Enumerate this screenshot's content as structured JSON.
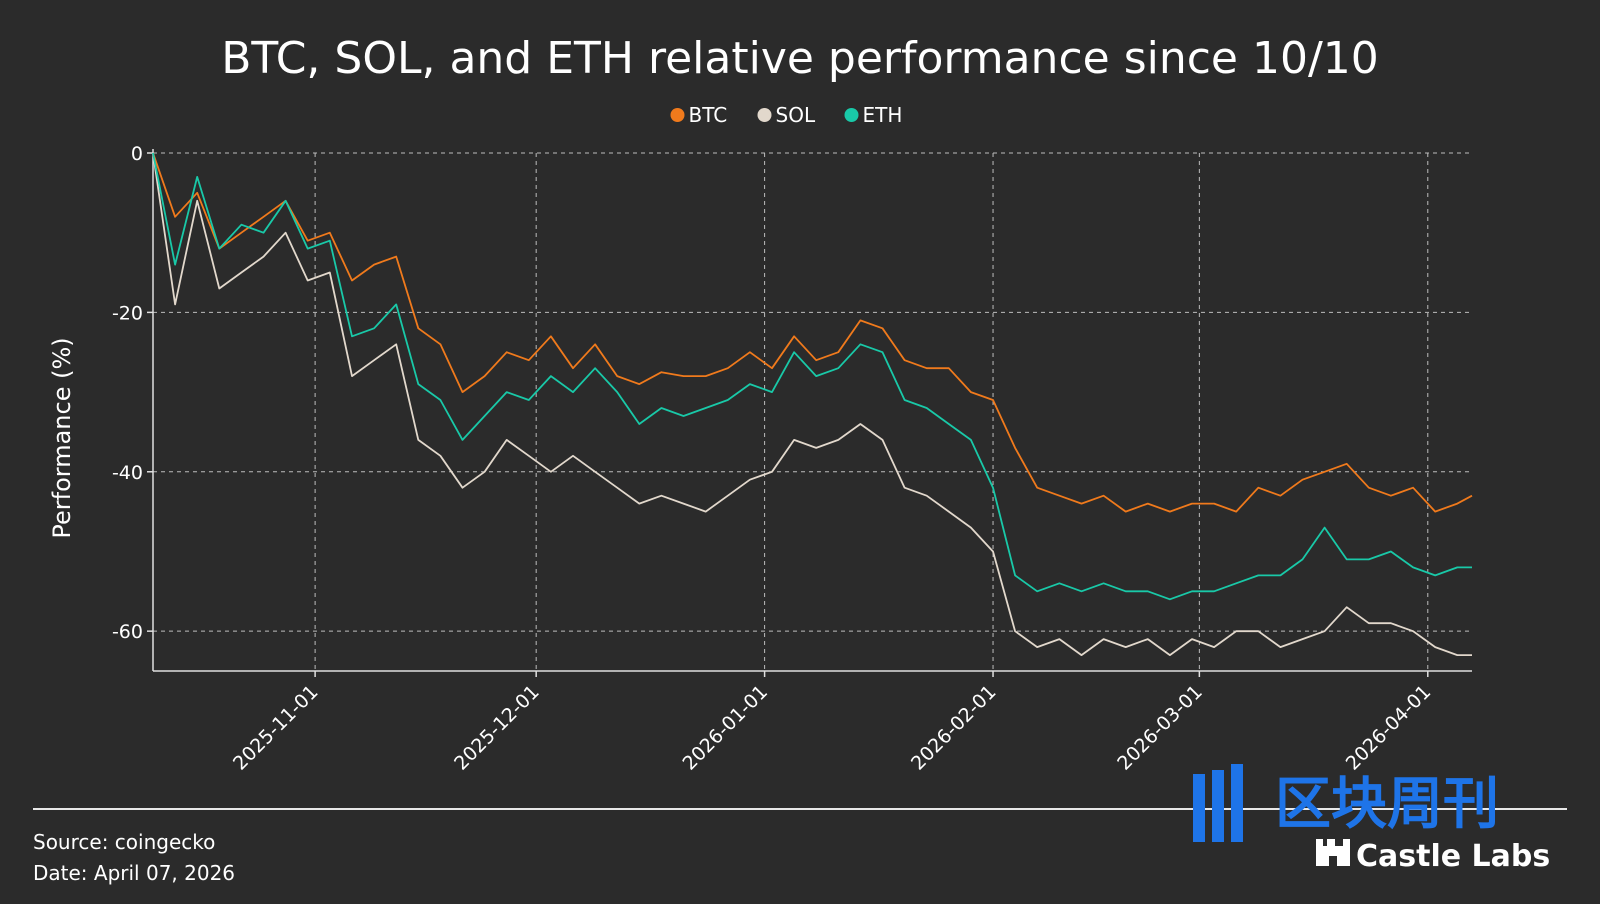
{
  "chart_data": {
    "type": "line",
    "title": "BTC, SOL, and ETH relative performance since 10/10",
    "ylabel": "Performance (%)",
    "xlabel": "",
    "x_range": [
      "2025-10-10",
      "2026-04-07"
    ],
    "ylim": [
      -65,
      0
    ],
    "grid": true,
    "legend_position": "top-center",
    "y_ticks": [
      0,
      -20,
      -40,
      -60
    ],
    "x_ticks": [
      "2025-11-01",
      "2025-12-01",
      "2026-01-01",
      "2026-02-01",
      "2026-03-01",
      "2026-04-01"
    ],
    "dates": [
      "2025-10-10",
      "2025-10-13",
      "2025-10-16",
      "2025-10-19",
      "2025-10-22",
      "2025-10-25",
      "2025-10-28",
      "2025-10-31",
      "2025-11-03",
      "2025-11-06",
      "2025-11-09",
      "2025-11-12",
      "2025-11-15",
      "2025-11-18",
      "2025-11-21",
      "2025-11-24",
      "2025-11-27",
      "2025-11-30",
      "2025-12-03",
      "2025-12-06",
      "2025-12-09",
      "2025-12-12",
      "2025-12-15",
      "2025-12-18",
      "2025-12-21",
      "2025-12-24",
      "2025-12-27",
      "2025-12-30",
      "2026-01-02",
      "2026-01-05",
      "2026-01-08",
      "2026-01-11",
      "2026-01-14",
      "2026-01-17",
      "2026-01-20",
      "2026-01-23",
      "2026-01-26",
      "2026-01-29",
      "2026-02-01",
      "2026-02-04",
      "2026-02-07",
      "2026-02-10",
      "2026-02-13",
      "2026-02-16",
      "2026-02-19",
      "2026-02-22",
      "2026-02-25",
      "2026-02-28",
      "2026-03-03",
      "2026-03-06",
      "2026-03-09",
      "2026-03-12",
      "2026-03-15",
      "2026-03-18",
      "2026-03-21",
      "2026-03-24",
      "2026-03-27",
      "2026-03-30",
      "2026-04-02",
      "2026-04-05",
      "2026-04-07"
    ],
    "series": [
      {
        "name": "BTC",
        "color": "#f07a1c",
        "values": [
          0,
          -8,
          -5,
          -12,
          -10,
          -8,
          -6,
          -11,
          -10,
          -16,
          -14,
          -13,
          -22,
          -24,
          -30,
          -28,
          -25,
          -26,
          -23,
          -27,
          -24,
          -28,
          -29,
          -27.5,
          -28,
          -28,
          -27,
          -25,
          -27,
          -23,
          -26,
          -25,
          -21,
          -22,
          -26,
          -27,
          -27,
          -30,
          -31,
          -37,
          -42,
          -43,
          -44,
          -43,
          -45,
          -44,
          -45,
          -44,
          -44,
          -45,
          -42,
          -43,
          -41,
          -40,
          -39,
          -42,
          -43,
          -42,
          -45,
          -44,
          -43
        ]
      },
      {
        "name": "SOL",
        "color": "#e2d8cc",
        "values": [
          0,
          -19,
          -6,
          -17,
          -15,
          -13,
          -10,
          -16,
          -15,
          -28,
          -26,
          -24,
          -36,
          -38,
          -42,
          -40,
          -36,
          -38,
          -40,
          -38,
          -40,
          -42,
          -44,
          -43,
          -44,
          -45,
          -43,
          -41,
          -40,
          -36,
          -37,
          -36,
          -34,
          -36,
          -42,
          -43,
          -45,
          -47,
          -50,
          -60,
          -62,
          -61,
          -63,
          -61,
          -62,
          -61,
          -63,
          -61,
          -62,
          -60,
          -60,
          -62,
          -61,
          -60,
          -57,
          -59,
          -59,
          -60,
          -62,
          -63,
          -63
        ]
      },
      {
        "name": "ETH",
        "color": "#19c9a8",
        "values": [
          0,
          -14,
          -3,
          -12,
          -9,
          -10,
          -6,
          -12,
          -11,
          -23,
          -22,
          -19,
          -29,
          -31,
          -36,
          -33,
          -30,
          -31,
          -28,
          -30,
          -27,
          -30,
          -34,
          -32,
          -33,
          -32,
          -31,
          -29,
          -30,
          -25,
          -28,
          -27,
          -24,
          -25,
          -31,
          -32,
          -34,
          -36,
          -42,
          -53,
          -55,
          -54,
          -55,
          -54,
          -55,
          -55,
          -56,
          -55,
          -55,
          -54,
          -53,
          -53,
          -51,
          -47,
          -51,
          -51,
          -50,
          -52,
          -53,
          -52,
          -52
        ]
      }
    ]
  },
  "legend": {
    "items": [
      {
        "label": "BTC",
        "color": "#f07a1c"
      },
      {
        "label": "SOL",
        "color": "#e2d8cc"
      },
      {
        "label": "ETH",
        "color": "#19c9a8"
      }
    ]
  },
  "footer": {
    "source": "Source: coingecko",
    "date": "Date: April 07, 2026"
  },
  "branding": {
    "logo_text_cn": "区块周刊",
    "logo_text_en": "Castle Labs",
    "logo_color": "#1e74e8"
  }
}
